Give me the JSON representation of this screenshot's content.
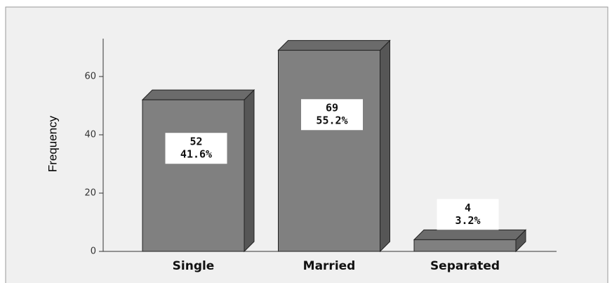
{
  "chart_data": {
    "type": "bar3d",
    "y_label": "Frequency",
    "categories": [
      "Single",
      "Married",
      "Separated"
    ],
    "values": [
      52,
      69,
      4
    ],
    "percent_values": [
      41.6,
      55.2,
      3.2
    ],
    "percent_labels": [
      "41.6%",
      "55.2%",
      "3.2%"
    ],
    "color": "#808080",
    "ylim": [
      0,
      73
    ],
    "yticks": [
      0,
      20,
      40,
      60
    ]
  }
}
